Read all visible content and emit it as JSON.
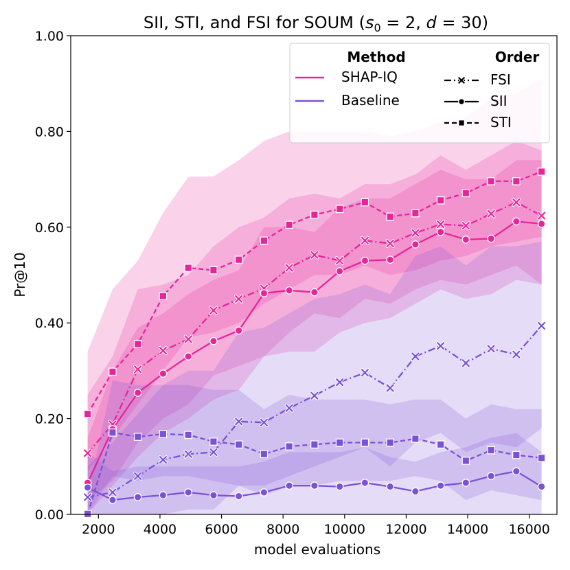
{
  "chart_data": {
    "type": "line",
    "title": "SII, STI, and FSI for SOUM (s₀ = 2, d = 30)",
    "title_parts": {
      "prefix": "SII, STI, and FSI for SOUM (",
      "s_var": "s",
      "s_sub": "0",
      "s_rest": " = 2, ",
      "d_var": "d",
      "d_rest": " = 30)"
    },
    "xlabel": "model evaluations",
    "ylabel": "Pr@10",
    "xlim": [
      1100,
      16900
    ],
    "ylim": [
      0,
      1
    ],
    "xticks": [
      2000,
      4000,
      6000,
      8000,
      10000,
      12000,
      14000,
      16000
    ],
    "yticks": [
      0,
      0.2,
      0.4,
      0.6,
      0.8,
      1.0
    ],
    "xtick_labels": [
      "2000",
      "4000",
      "6000",
      "8000",
      "10000",
      "12000",
      "14000",
      "16000"
    ],
    "ytick_labels": [
      "0.00",
      "0.20",
      "0.40",
      "0.60",
      "0.80",
      "1.00"
    ],
    "x": [
      1650,
      2460,
      3280,
      4100,
      4920,
      5740,
      6560,
      7380,
      8200,
      9020,
      9840,
      10660,
      11480,
      12300,
      13120,
      13940,
      14760,
      15580,
      16400
    ],
    "colors": {
      "SHAP-IQ": "#e8249a",
      "Baseline": "#7b52d6"
    },
    "series": [
      {
        "name": "SHAP-IQ STI",
        "method": "SHAP-IQ",
        "order": "STI",
        "marker": "square",
        "dash": "7 4",
        "values": [
          0.21,
          0.298,
          0.356,
          0.456,
          0.515,
          0.51,
          0.532,
          0.572,
          0.605,
          0.626,
          0.638,
          0.652,
          0.622,
          0.629,
          0.656,
          0.671,
          0.696,
          0.696,
          0.716
        ],
        "lower": [
          0.09,
          0.16,
          0.23,
          0.3,
          0.37,
          0.38,
          0.4,
          0.44,
          0.47,
          0.5,
          0.5,
          0.52,
          0.5,
          0.51,
          0.53,
          0.54,
          0.56,
          0.57,
          0.58
        ],
        "upper": [
          0.34,
          0.47,
          0.53,
          0.63,
          0.705,
          0.706,
          0.74,
          0.78,
          0.8,
          0.8,
          0.8,
          0.8,
          0.79,
          0.8,
          0.82,
          0.83,
          0.87,
          0.88,
          0.91
        ]
      },
      {
        "name": "SHAP-IQ FSI",
        "method": "SHAP-IQ",
        "order": "FSI",
        "marker": "x",
        "dash": "10 4 2 4",
        "values": [
          0.128,
          0.188,
          0.303,
          0.342,
          0.366,
          0.426,
          0.45,
          0.472,
          0.515,
          0.542,
          0.53,
          0.572,
          0.566,
          0.588,
          0.606,
          0.603,
          0.628,
          0.652,
          0.624
        ],
        "lower": [
          0.03,
          0.07,
          0.15,
          0.2,
          0.23,
          0.29,
          0.31,
          0.33,
          0.38,
          0.42,
          0.41,
          0.45,
          0.44,
          0.47,
          0.49,
          0.48,
          0.5,
          0.52,
          0.48
        ],
        "upper": [
          0.25,
          0.33,
          0.47,
          0.48,
          0.5,
          0.56,
          0.6,
          0.62,
          0.66,
          0.67,
          0.66,
          0.69,
          0.69,
          0.71,
          0.75,
          0.72,
          0.75,
          0.78,
          0.76
        ]
      },
      {
        "name": "SHAP-IQ SII",
        "method": "SHAP-IQ",
        "order": "SII",
        "marker": "circle",
        "dash": "",
        "values": [
          0.066,
          0.178,
          0.254,
          0.294,
          0.33,
          0.362,
          0.384,
          0.462,
          0.468,
          0.464,
          0.508,
          0.53,
          0.532,
          0.564,
          0.59,
          0.574,
          0.576,
          0.612,
          0.607
        ],
        "lower": [
          0.0,
          0.06,
          0.12,
          0.17,
          0.2,
          0.24,
          0.26,
          0.33,
          0.34,
          0.34,
          0.38,
          0.4,
          0.41,
          0.44,
          0.47,
          0.45,
          0.46,
          0.49,
          0.48
        ],
        "upper": [
          0.16,
          0.3,
          0.39,
          0.42,
          0.46,
          0.49,
          0.51,
          0.6,
          0.6,
          0.59,
          0.64,
          0.66,
          0.66,
          0.69,
          0.72,
          0.7,
          0.7,
          0.74,
          0.74
        ]
      },
      {
        "name": "Baseline FSI",
        "method": "Baseline",
        "order": "FSI",
        "marker": "x",
        "dash": "10 4 2 4",
        "values": [
          0.036,
          0.046,
          0.08,
          0.114,
          0.126,
          0.13,
          0.194,
          0.192,
          0.222,
          0.248,
          0.276,
          0.296,
          0.264,
          0.33,
          0.352,
          0.316,
          0.346,
          0.334,
          0.394
        ],
        "lower": [
          0.0,
          0.0,
          0.0,
          0.0,
          0.01,
          0.01,
          0.06,
          0.06,
          0.08,
          0.1,
          0.12,
          0.14,
          0.1,
          0.15,
          0.17,
          0.13,
          0.15,
          0.14,
          0.18
        ],
        "upper": [
          0.1,
          0.15,
          0.21,
          0.27,
          0.3,
          0.3,
          0.38,
          0.39,
          0.42,
          0.45,
          0.46,
          0.48,
          0.46,
          0.54,
          0.56,
          0.52,
          0.56,
          0.56,
          0.57
        ]
      },
      {
        "name": "Baseline STI",
        "method": "Baseline",
        "order": "STI",
        "marker": "square",
        "dash": "7 4",
        "values": [
          0.001,
          0.171,
          0.162,
          0.168,
          0.166,
          0.152,
          0.146,
          0.126,
          0.142,
          0.146,
          0.15,
          0.15,
          0.15,
          0.158,
          0.146,
          0.112,
          0.134,
          0.124,
          0.118
        ],
        "lower": [
          0.0,
          0.08,
          0.07,
          0.08,
          0.08,
          0.07,
          0.06,
          0.04,
          0.06,
          0.06,
          0.07,
          0.07,
          0.07,
          0.08,
          0.07,
          0.03,
          0.05,
          0.04,
          0.03
        ],
        "upper": [
          0.04,
          0.28,
          0.27,
          0.27,
          0.27,
          0.26,
          0.26,
          0.22,
          0.25,
          0.24,
          0.24,
          0.24,
          0.23,
          0.24,
          0.24,
          0.2,
          0.23,
          0.22,
          0.22
        ]
      },
      {
        "name": "Baseline SII",
        "method": "Baseline",
        "order": "SII",
        "marker": "circle",
        "dash": "",
        "values": [
          0.056,
          0.03,
          0.036,
          0.04,
          0.046,
          0.04,
          0.038,
          0.046,
          0.06,
          0.06,
          0.058,
          0.066,
          0.058,
          0.048,
          0.06,
          0.066,
          0.08,
          0.09,
          0.058
        ],
        "lower": [
          0.0,
          0.0,
          0.0,
          0.0,
          0.0,
          0.0,
          0.0,
          0.0,
          0.0,
          0.0,
          0.0,
          0.0,
          0.0,
          0.0,
          0.0,
          0.0,
          0.0,
          0.0,
          0.0
        ],
        "upper": [
          0.13,
          0.09,
          0.1,
          0.1,
          0.1,
          0.1,
          0.1,
          0.11,
          0.13,
          0.13,
          0.13,
          0.14,
          0.12,
          0.11,
          0.13,
          0.14,
          0.16,
          0.17,
          0.13
        ]
      }
    ],
    "legend": {
      "placement": "top-right",
      "method_header": "Method",
      "order_header": "Order",
      "methods": [
        "SHAP-IQ",
        "Baseline"
      ],
      "orders": [
        {
          "label": "FSI",
          "marker": "x",
          "dash": "10 4 2 4"
        },
        {
          "label": "SII",
          "marker": "circle",
          "dash": ""
        },
        {
          "label": "STI",
          "marker": "square",
          "dash": "7 4"
        }
      ]
    }
  }
}
